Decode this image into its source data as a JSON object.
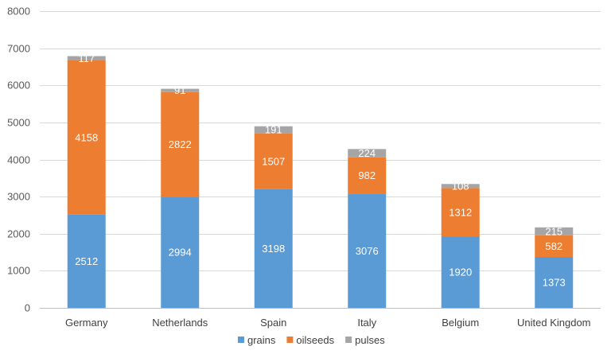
{
  "chart_data": {
    "type": "bar",
    "stacked": true,
    "categories": [
      "Germany",
      "Netherlands",
      "Spain",
      "Italy",
      "Belgium",
      "United Kingdom"
    ],
    "series": [
      {
        "name": "grains",
        "color": "#5b9bd5",
        "values": [
          2512,
          2994,
          3198,
          3076,
          1920,
          1373
        ]
      },
      {
        "name": "oilseeds",
        "color": "#ed7d31",
        "values": [
          4158,
          2822,
          1507,
          982,
          1312,
          582
        ]
      },
      {
        "name": "pulses",
        "color": "#a5a5a5",
        "values": [
          117,
          91,
          191,
          224,
          108,
          215
        ]
      }
    ],
    "title": "",
    "xlabel": "",
    "ylabel": "",
    "ylim": [
      0,
      8000
    ],
    "yticks": [
      0,
      1000,
      2000,
      3000,
      4000,
      5000,
      6000,
      7000,
      8000
    ],
    "grid": true,
    "legend": "bottom-center",
    "data_labels": true
  }
}
